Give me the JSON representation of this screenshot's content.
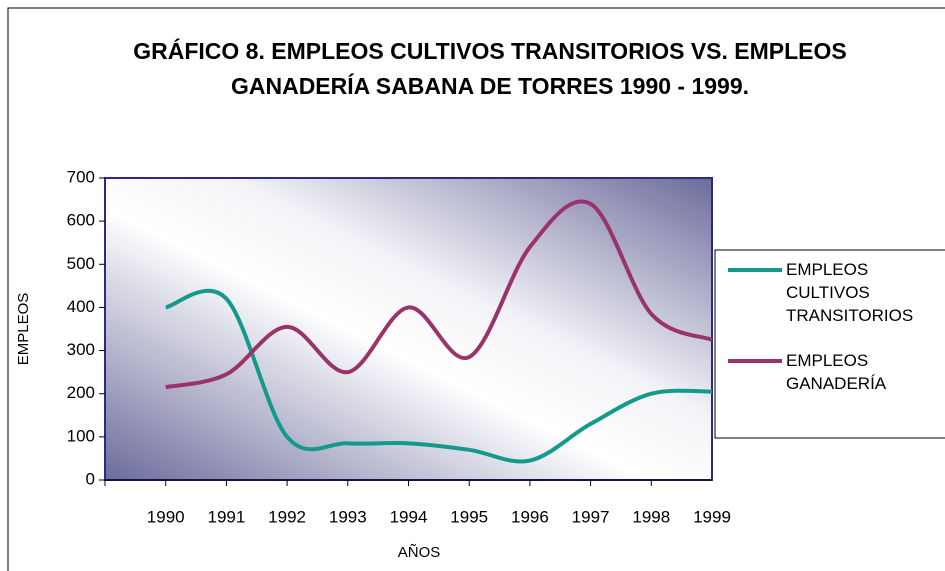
{
  "chart_data": {
    "type": "line",
    "title": "GRÁFICO 8.   EMPLEOS CULTIVOS TRANSITORIOS VS. EMPLEOS GANADERÍA SABANA DE TORRES 1990 - 1999.",
    "xlabel": "AÑOS",
    "ylabel": "EMPLEOS",
    "categories": [
      "1990",
      "1991",
      "1992",
      "1993",
      "1994",
      "1995",
      "1996",
      "1997",
      "1998",
      "1999"
    ],
    "series": [
      {
        "name": "EMPLEOS CULTIVOS TRANSITORIOS",
        "color": "#139a8c",
        "values": [
          400,
          420,
          100,
          85,
          85,
          70,
          45,
          130,
          200,
          205
        ]
      },
      {
        "name": "EMPLEOS GANADERÍA",
        "color": "#99336a",
        "values": [
          215,
          245,
          355,
          250,
          400,
          285,
          540,
          640,
          385,
          325
        ]
      }
    ],
    "ylim": [
      0,
      700
    ],
    "yticks": [
      0,
      100,
      200,
      300,
      400,
      500,
      600,
      700
    ],
    "legend": "right"
  }
}
